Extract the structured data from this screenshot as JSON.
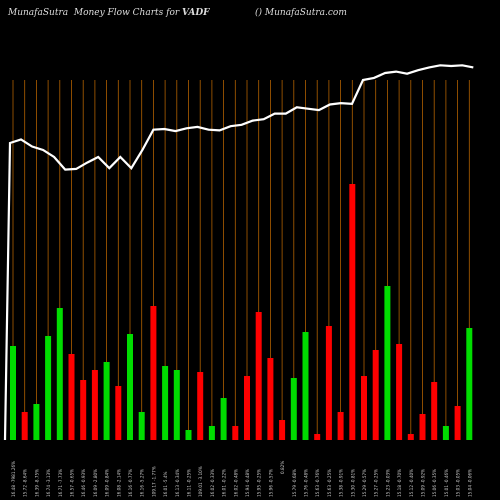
{
  "header": {
    "site": "MunafaSutra",
    "title_middle": "Money Flow  Charts for",
    "symbol": "VADF",
    "right": "() MunafaSutra.com"
  },
  "chart_data": {
    "type": "bar",
    "colors": {
      "up": "#00dd00",
      "down": "#ff0000",
      "price_line": "#ffffff",
      "grid": "#b06000"
    },
    "bars": [
      {
        "dir": "up",
        "value": 0.47
      },
      {
        "dir": "down",
        "value": 0.14
      },
      {
        "dir": "up",
        "value": 0.18
      },
      {
        "dir": "up",
        "value": 0.52
      },
      {
        "dir": "up",
        "value": 0.66
      },
      {
        "dir": "down",
        "value": 0.43
      },
      {
        "dir": "down",
        "value": 0.3
      },
      {
        "dir": "down",
        "value": 0.35
      },
      {
        "dir": "up",
        "value": 0.39
      },
      {
        "dir": "down",
        "value": 0.27
      },
      {
        "dir": "up",
        "value": 0.53
      },
      {
        "dir": "up",
        "value": 0.14
      },
      {
        "dir": "down",
        "value": 0.67
      },
      {
        "dir": "up",
        "value": 0.37
      },
      {
        "dir": "up",
        "value": 0.35
      },
      {
        "dir": "up",
        "value": 0.05
      },
      {
        "dir": "down",
        "value": 0.34
      },
      {
        "dir": "up",
        "value": 0.07
      },
      {
        "dir": "up",
        "value": 0.21
      },
      {
        "dir": "down",
        "value": 0.07
      },
      {
        "dir": "down",
        "value": 0.32
      },
      {
        "dir": "down",
        "value": 0.64
      },
      {
        "dir": "down",
        "value": 0.41
      },
      {
        "dir": "down",
        "value": 0.1
      },
      {
        "dir": "up",
        "value": 0.31
      },
      {
        "dir": "up",
        "value": 0.54
      },
      {
        "dir": "down",
        "value": 0.03
      },
      {
        "dir": "down",
        "value": 0.57
      },
      {
        "dir": "down",
        "value": 0.14
      },
      {
        "dir": "down",
        "value": 1.28
      },
      {
        "dir": "down",
        "value": 0.32
      },
      {
        "dir": "down",
        "value": 0.45
      },
      {
        "dir": "up",
        "value": 0.77
      },
      {
        "dir": "down",
        "value": 0.48
      },
      {
        "dir": "down",
        "value": 0.03
      },
      {
        "dir": "down",
        "value": 0.13
      },
      {
        "dir": "down",
        "value": 0.29
      },
      {
        "dir": "up",
        "value": 0.07
      },
      {
        "dir": "down",
        "value": 0.17
      },
      {
        "dir": "up",
        "value": 0.56
      }
    ],
    "price_line": [
      0.51,
      0.515,
      0.505,
      0.5,
      0.49,
      0.472,
      0.473,
      0.482,
      0.49,
      0.474,
      0.49,
      0.474,
      0.5,
      0.529,
      0.53,
      0.527,
      0.531,
      0.533,
      0.529,
      0.528,
      0.534,
      0.536,
      0.542,
      0.544,
      0.552,
      0.552,
      0.561,
      0.559,
      0.557,
      0.565,
      0.567,
      0.566,
      0.6,
      0.603,
      0.61,
      0.612,
      0.609,
      0.614,
      0.618,
      0.621,
      0.62,
      0.621,
      0.618
    ],
    "price_start": 0.875,
    "x_labels": [
      "16.48 -7981.26%",
      "15.72 -8.64%",
      "16.39 -8.75%",
      "16.74 -3.13%",
      "16.71 -7.73%",
      "16.57 -0.65%",
      "16.46 -0.93%",
      "16.09 -2.80%",
      "16.09 -0.84%",
      "16.08 -2.14%",
      "16.16 -0.77%",
      "16.16 -5.27%",
      "109.17 -1.77%",
      "16.01 -5.4%",
      "16.13 -0.34%",
      "16.11 -0.25%",
      "109.01 -3.10%",
      "16.02 -0.33%",
      "16.01 -0.22%",
      "16.02 -0.48%",
      "15.94 -0.48%",
      "15.95 -0.25%",
      "15.96 -0.57%",
      "",
      "15.79 -0.68%",
      "15.76 -0.48%",
      "15.63 -0.76%",
      "15.63 -0.25%",
      "15.38 -0.91%",
      "15.30 -0.81%",
      "15.29 -0.57%",
      "15.27 -0.25%",
      "15.23 -0.03%",
      "15.18 -0.70%",
      "15.12 -0.40%",
      "15.09 -0.92%",
      "15.06 -0.35%",
      "15.01 -0.46%",
      "15.03 -0.05%",
      "15.04 -0.06%"
    ],
    "extra_label": "0.82%"
  }
}
